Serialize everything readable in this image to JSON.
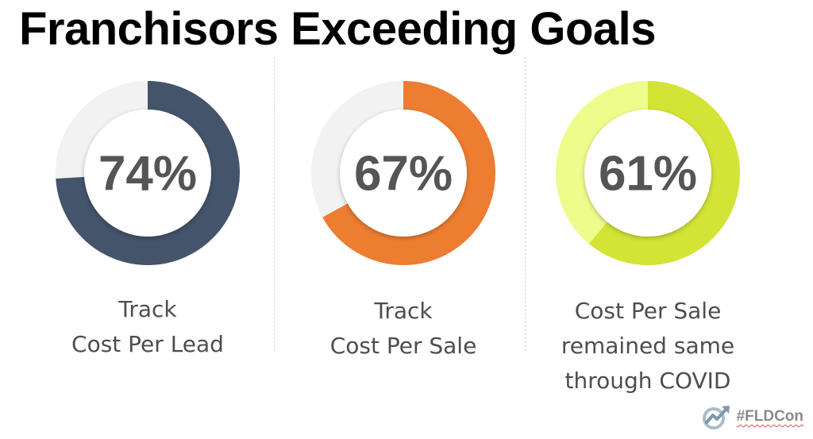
{
  "title": "Franchisors Exceeding Goals",
  "brand": {
    "hashtag": "#FLDCon",
    "logo_icon": "growth-arrow-logo-icon"
  },
  "chart_data": [
    {
      "type": "pie",
      "value": 74,
      "label": "74%",
      "caption_lines": [
        "Track",
        "Cost Per Lead"
      ],
      "color": "#44546a",
      "track_color": "#f2f2f2"
    },
    {
      "type": "pie",
      "value": 67,
      "label": "67%",
      "caption_lines": [
        "Track",
        "Cost Per Sale"
      ],
      "color": "#ed7d31",
      "track_color": "#f2f2f2"
    },
    {
      "type": "pie",
      "value": 61,
      "label": "61%",
      "caption_lines": [
        "Cost Per Sale",
        "remained same",
        "through COVID"
      ],
      "color": "#d3e437",
      "track_color": "#eefc8c"
    }
  ]
}
